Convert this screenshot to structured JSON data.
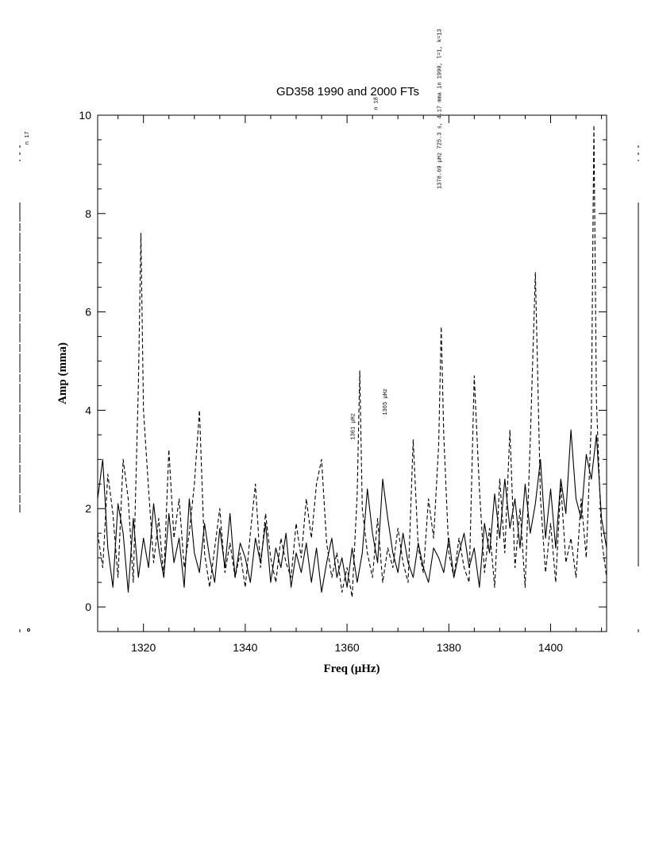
{
  "chart_data": {
    "type": "line",
    "title": "GD358 1990 and 2000 FTs",
    "xlabel": "Freq (μHz)",
    "ylabel": "Amp (mma)",
    "xlim": [
      1311,
      1411
    ],
    "ylim": [
      -0.5,
      10
    ],
    "xticks": [
      1320,
      1340,
      1360,
      1380,
      1400
    ],
    "yticks": [
      0,
      2,
      4,
      6,
      8,
      10
    ],
    "grid": false,
    "legend": "none",
    "series": [
      {
        "style": "solid",
        "color": "#000000",
        "x": [
          1311,
          1312,
          1313,
          1314,
          1315,
          1316,
          1317,
          1318,
          1319,
          1320,
          1321,
          1322,
          1323,
          1324,
          1325,
          1326,
          1327,
          1328,
          1329,
          1330,
          1331,
          1332,
          1333,
          1334,
          1335,
          1336,
          1337,
          1338,
          1339,
          1340,
          1341,
          1342,
          1343,
          1344,
          1345,
          1346,
          1347,
          1348,
          1349,
          1350,
          1351,
          1352,
          1353,
          1354,
          1355,
          1356,
          1357,
          1358,
          1359,
          1360,
          1361,
          1362,
          1363,
          1364,
          1365,
          1366,
          1367,
          1368,
          1369,
          1370,
          1371,
          1372,
          1373,
          1374,
          1375,
          1376,
          1377,
          1378,
          1379,
          1380,
          1381,
          1382,
          1383,
          1384,
          1385,
          1386,
          1387,
          1388,
          1389,
          1390,
          1391,
          1392,
          1393,
          1394,
          1395,
          1396,
          1397,
          1398,
          1399,
          1400,
          1401,
          1402,
          1403,
          1404,
          1405,
          1406,
          1407,
          1408,
          1409,
          1410,
          1411
        ],
        "y": [
          2.2,
          3.0,
          1.2,
          0.4,
          2.1,
          1.5,
          0.3,
          1.8,
          0.6,
          1.4,
          0.8,
          2.1,
          1.2,
          0.6,
          1.9,
          0.9,
          1.4,
          0.4,
          2.2,
          1.1,
          0.7,
          1.7,
          1.0,
          0.5,
          1.6,
          0.8,
          1.9,
          0.6,
          1.3,
          1.0,
          0.5,
          1.4,
          0.9,
          1.7,
          0.5,
          1.2,
          0.8,
          1.5,
          0.4,
          1.1,
          0.7,
          1.3,
          0.5,
          1.2,
          0.3,
          0.9,
          1.4,
          0.6,
          1.0,
          0.4,
          1.2,
          0.5,
          1.1,
          2.4,
          1.5,
          0.9,
          2.6,
          1.8,
          1.1,
          0.7,
          1.5,
          0.9,
          0.6,
          1.3,
          0.8,
          0.5,
          1.2,
          1.0,
          0.7,
          1.4,
          0.6,
          1.1,
          1.5,
          0.8,
          1.2,
          0.4,
          1.7,
          1.1,
          2.3,
          1.4,
          2.6,
          1.6,
          2.2,
          1.2,
          2.5,
          1.5,
          2.1,
          3.0,
          1.4,
          2.4,
          1.2,
          2.6,
          1.9,
          3.6,
          2.2,
          1.8,
          3.1,
          2.6,
          3.5,
          1.8,
          1.2
        ]
      },
      {
        "style": "dashed",
        "color": "#000000",
        "x": [
          1311,
          1312,
          1313,
          1314,
          1315,
          1316,
          1317,
          1318,
          1319,
          1319.5,
          1320,
          1321,
          1322,
          1323,
          1324,
          1325,
          1326,
          1327,
          1328,
          1329,
          1330,
          1331,
          1332,
          1333,
          1334,
          1335,
          1336,
          1337,
          1338,
          1339,
          1340,
          1341,
          1342,
          1343,
          1344,
          1345,
          1346,
          1347,
          1348,
          1349,
          1350,
          1351,
          1352,
          1353,
          1354,
          1355,
          1356,
          1357,
          1358,
          1359,
          1360,
          1361,
          1362,
          1362.5,
          1363,
          1364,
          1365,
          1366,
          1367,
          1368,
          1369,
          1370,
          1371,
          1372,
          1373,
          1374,
          1375,
          1376,
          1377,
          1378,
          1378.5,
          1379,
          1380,
          1381,
          1382,
          1383,
          1384,
          1385,
          1386,
          1387,
          1388,
          1389,
          1390,
          1391,
          1392,
          1393,
          1394,
          1395,
          1396,
          1397,
          1398,
          1399,
          1400,
          1401,
          1402,
          1403,
          1404,
          1405,
          1406,
          1407,
          1408,
          1408.5,
          1409,
          1410,
          1411
        ],
        "y": [
          1.5,
          0.8,
          2.7,
          1.9,
          0.6,
          3.0,
          2.2,
          0.5,
          4.5,
          7.6,
          4.0,
          2.4,
          0.9,
          1.8,
          0.6,
          3.2,
          1.4,
          2.2,
          0.8,
          1.5,
          2.5,
          4.0,
          1.1,
          0.4,
          1.2,
          2.0,
          0.7,
          1.3,
          0.6,
          1.1,
          0.4,
          1.5,
          2.5,
          0.8,
          1.9,
          1.0,
          0.5,
          1.4,
          0.9,
          0.6,
          1.7,
          1.0,
          2.2,
          1.4,
          2.5,
          3.0,
          1.3,
          0.6,
          1.1,
          0.3,
          0.8,
          0.2,
          2.3,
          4.8,
          2.0,
          1.1,
          0.6,
          1.8,
          0.5,
          1.2,
          0.8,
          1.6,
          0.9,
          0.5,
          3.4,
          1.2,
          0.7,
          2.2,
          1.4,
          3.3,
          5.7,
          3.5,
          1.1,
          0.6,
          1.4,
          0.8,
          0.5,
          4.7,
          2.4,
          0.7,
          1.6,
          0.4,
          2.6,
          1.1,
          3.6,
          0.8,
          2.0,
          0.4,
          3.4,
          6.8,
          2.2,
          0.7,
          1.7,
          0.5,
          2.5,
          0.9,
          1.4,
          0.6,
          2.2,
          1.0,
          3.8,
          9.8,
          4.2,
          1.4,
          0.6
        ]
      }
    ],
    "annotations": [
      {
        "text": "1361 μHz",
        "x": 1361.5,
        "y": 3.4,
        "rotation": -90
      },
      {
        "text": "1365 μHz",
        "x": 1367.8,
        "y": 3.9,
        "rotation": -90
      },
      {
        "text": "1378.69 μHz 725.3 s, 4.17 mma in 1990, l=1, k=13",
        "x": 1378.5,
        "y": 8.5,
        "rotation": -90
      },
      {
        "text": "n 18",
        "x": 1366,
        "y": 10.1,
        "rotation": -90
      },
      {
        "text": "n 17",
        "x": -1,
        "y": 9.4,
        "rotation": -90
      }
    ]
  }
}
